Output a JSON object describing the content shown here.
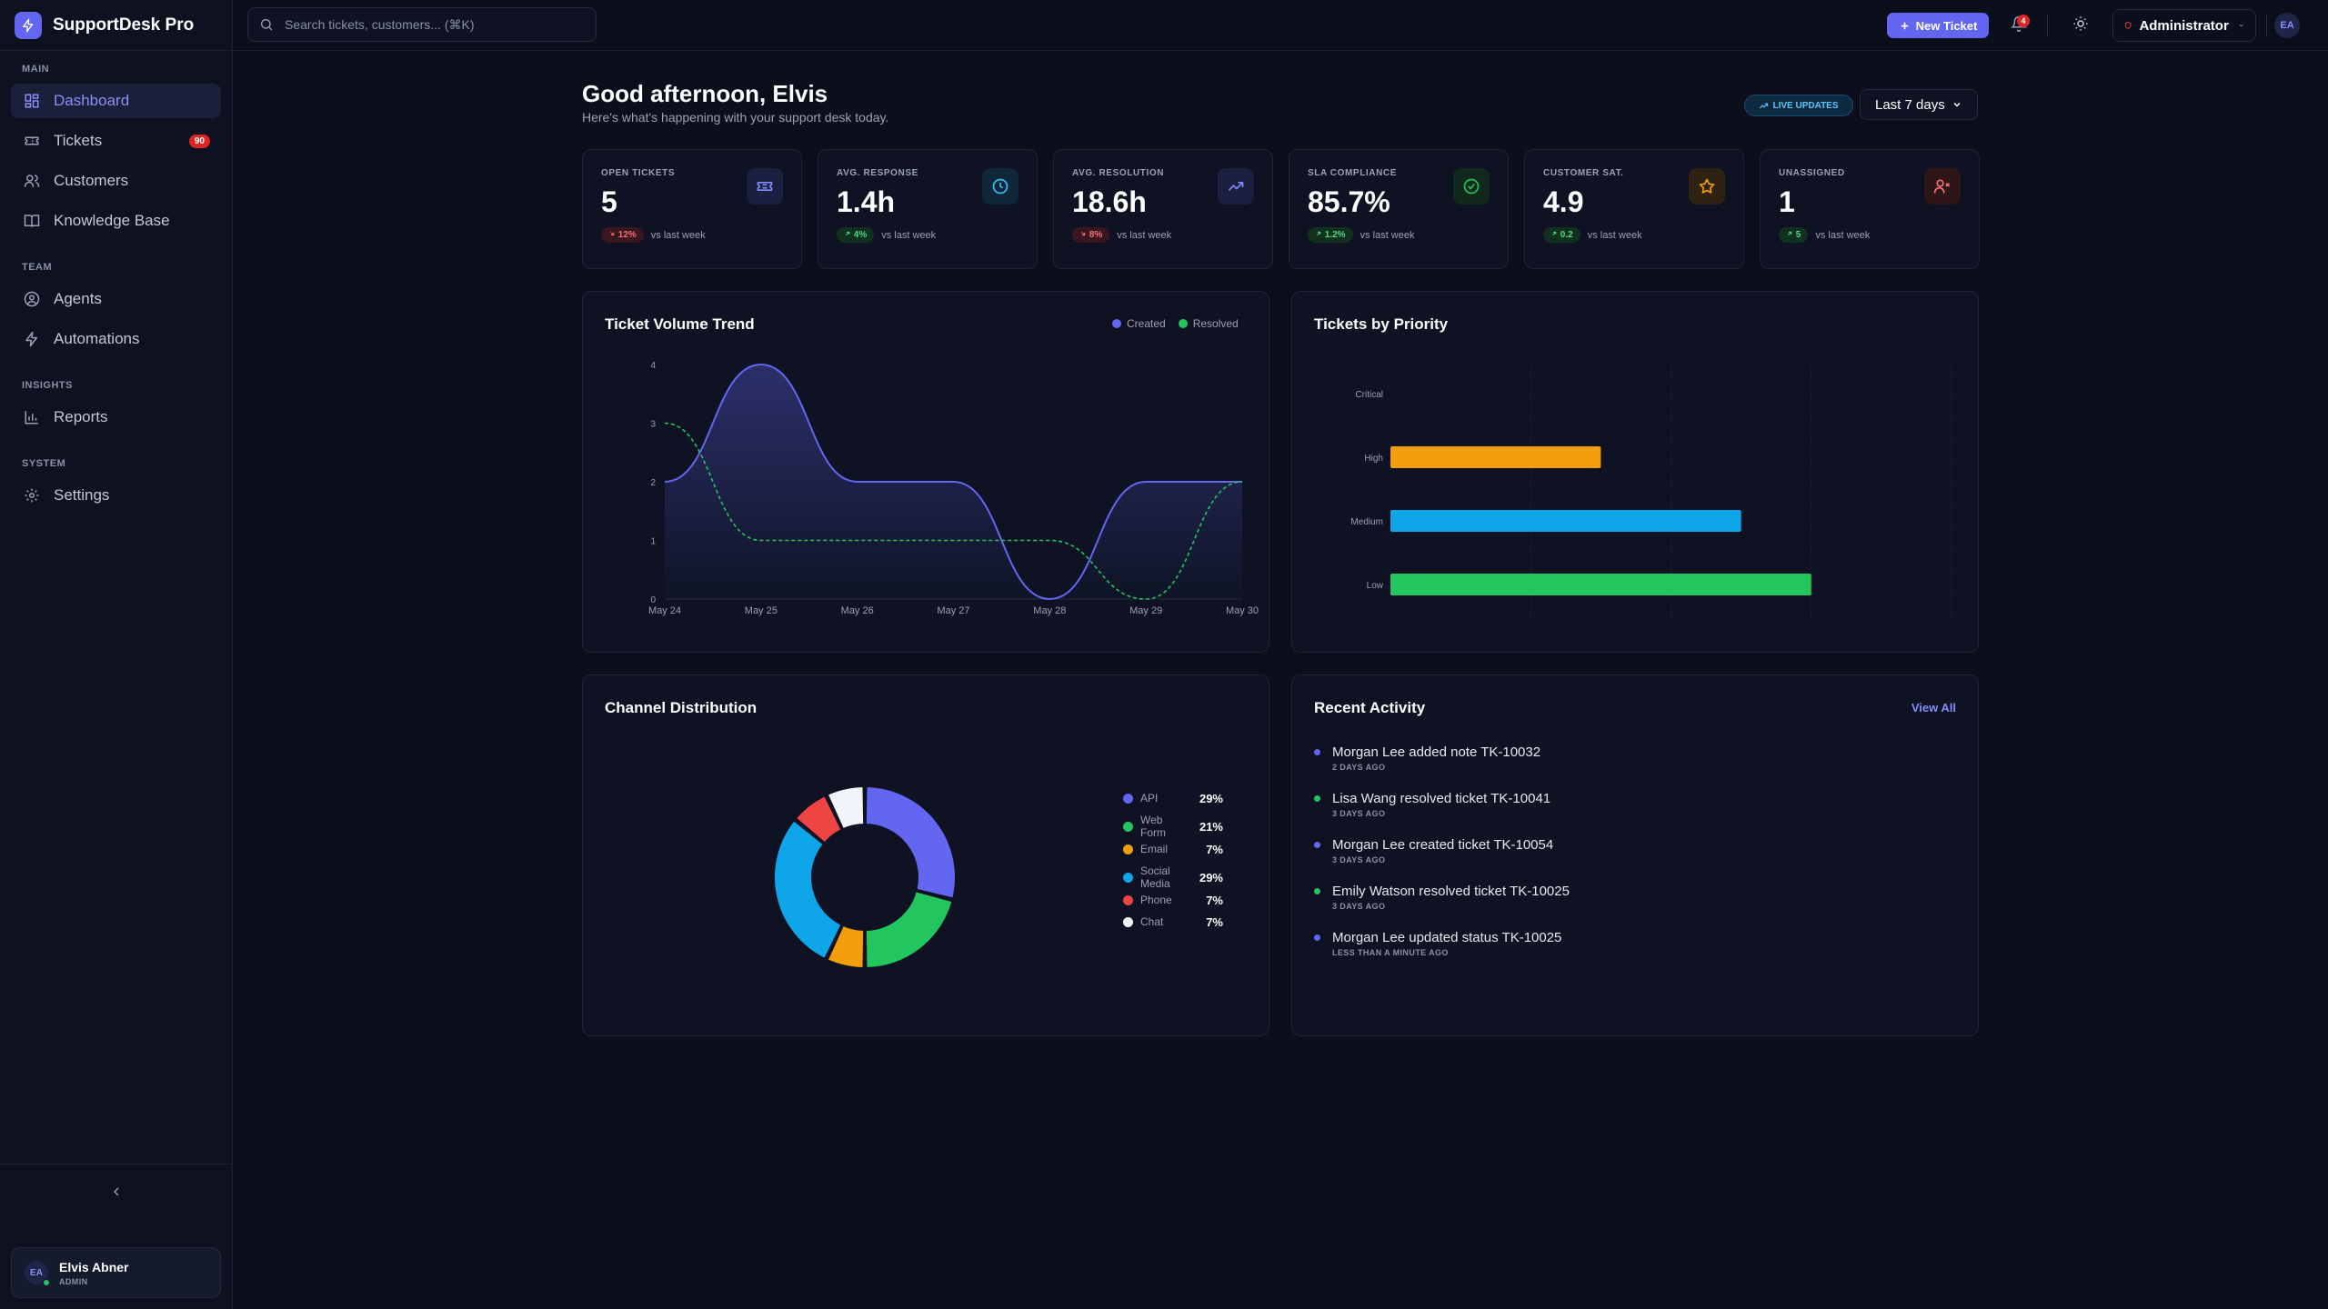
{
  "brand": {
    "name": "SupportDesk Pro"
  },
  "sidebar": {
    "sections": [
      {
        "title": "MAIN"
      },
      {
        "title": "TEAM"
      },
      {
        "title": "INSIGHTS"
      },
      {
        "title": "SYSTEM"
      }
    ],
    "items": [
      {
        "label": "Dashboard",
        "icon": "dashboard-icon",
        "active": true
      },
      {
        "label": "Tickets",
        "icon": "ticket-icon",
        "badge": "90"
      },
      {
        "label": "Customers",
        "icon": "users-icon"
      },
      {
        "label": "Knowledge Base",
        "icon": "book-icon"
      },
      {
        "label": "Agents",
        "icon": "user-circle-icon"
      },
      {
        "label": "Automations",
        "icon": "bolt-icon"
      },
      {
        "label": "Reports",
        "icon": "bar-chart-icon"
      },
      {
        "label": "Settings",
        "icon": "gear-icon"
      }
    ],
    "user": {
      "initials": "EA",
      "name": "Elvis Abner",
      "role": "ADMIN"
    }
  },
  "topbar": {
    "search_placeholder": "Search tickets, customers... (⌘K)",
    "new_ticket_label": "New Ticket",
    "notifications_count": "4",
    "role": "Administrator",
    "avatar_initials": "EA"
  },
  "header": {
    "greeting": "Good afternoon, Elvis",
    "subtitle": "Here's what's happening with your support desk today.",
    "live_label": "LIVE UPDATES",
    "range_label": "Last 7 days"
  },
  "stats": [
    {
      "label": "OPEN TICKETS",
      "value": "5",
      "delta": "12%",
      "direction": "down",
      "note": "vs last week",
      "icon": "ticket-icon",
      "color": "#818cf8"
    },
    {
      "label": "AVG. RESPONSE",
      "value": "1.4h",
      "delta": "4%",
      "direction": "up",
      "note": "vs last week",
      "icon": "clock-icon",
      "color": "#38bdf8"
    },
    {
      "label": "AVG. RESOLUTION",
      "value": "18.6h",
      "delta": "8%",
      "direction": "down",
      "note": "vs last week",
      "icon": "trend-up-icon",
      "color": "#818cf8"
    },
    {
      "label": "SLA COMPLIANCE",
      "value": "85.7%",
      "delta": "1.2%",
      "direction": "up",
      "note": "vs last week",
      "icon": "check-circle-icon",
      "color": "#22c55e"
    },
    {
      "label": "CUSTOMER SAT.",
      "value": "4.9",
      "delta": "0.2",
      "direction": "up",
      "note": "vs last week",
      "icon": "star-icon",
      "color": "#f59e0b"
    },
    {
      "label": "UNASSIGNED",
      "value": "1",
      "delta": "5",
      "direction": "up",
      "note": "vs last week",
      "icon": "user-x-icon",
      "color": "#f87171"
    }
  ],
  "panels": {
    "volume_title": "Ticket Volume Trend",
    "priority_title": "Tickets by Priority",
    "channel_title": "Channel Distribution",
    "activity_title": "Recent Activity",
    "view_all": "View All"
  },
  "chart_data": [
    {
      "type": "line",
      "title": "Ticket Volume Trend",
      "x": [
        "May 24",
        "May 25",
        "May 26",
        "May 27",
        "May 28",
        "May 29",
        "May 30"
      ],
      "ylim": [
        0,
        4
      ],
      "yticks": [
        "0",
        "1",
        "2",
        "3",
        "4"
      ],
      "series": [
        {
          "name": "Created",
          "values": [
            2,
            4,
            2,
            2,
            0,
            2,
            2
          ],
          "color": "#6366f1"
        },
        {
          "name": "Resolved",
          "values": [
            3,
            1,
            1,
            1,
            1,
            0,
            2
          ],
          "color": "#22c55e"
        }
      ]
    },
    {
      "type": "bar",
      "title": "Tickets by Priority",
      "orientation": "horizontal",
      "categories": [
        "Critical",
        "High",
        "Medium",
        "Low"
      ],
      "values": [
        0,
        1.5,
        2.5,
        3
      ],
      "colors": [
        "#ef4444",
        "#f59e0b",
        "#0ea5e9",
        "#22c55e"
      ]
    },
    {
      "type": "pie",
      "title": "Channel Distribution",
      "categories": [
        "API",
        "Web Form",
        "Email",
        "Social Media",
        "Phone",
        "Chat"
      ],
      "values": [
        29,
        21,
        7,
        29,
        7,
        7
      ],
      "labels": [
        "29%",
        "21%",
        "7%",
        "29%",
        "7%",
        "7%"
      ],
      "colors": [
        "#6366f1",
        "#22c55e",
        "#f59e0b",
        "#0ea5e9",
        "#ef4444",
        "#f1f5f9"
      ]
    }
  ],
  "activity": [
    {
      "text": "Morgan Lee added note TK-10032",
      "time": "2 DAYS AGO",
      "color": "#6366f1"
    },
    {
      "text": "Lisa Wang resolved ticket TK-10041",
      "time": "3 DAYS AGO",
      "color": "#22c55e"
    },
    {
      "text": "Morgan Lee created ticket TK-10054",
      "time": "3 DAYS AGO",
      "color": "#6366f1"
    },
    {
      "text": "Emily Watson resolved ticket TK-10025",
      "time": "3 DAYS AGO",
      "color": "#22c55e"
    },
    {
      "text": "Morgan Lee updated status TK-10025",
      "time": "LESS THAN A MINUTE AGO",
      "color": "#6366f1"
    }
  ]
}
